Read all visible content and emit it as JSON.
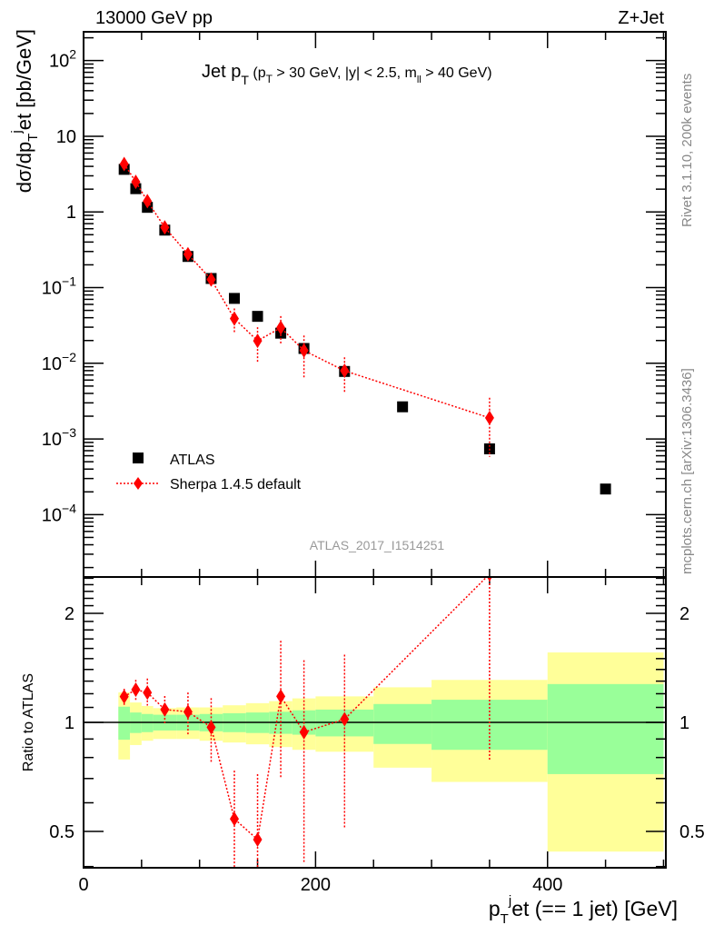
{
  "header": {
    "left": "13000 GeV pp",
    "right": "Z+Jet"
  },
  "side_text": {
    "rivet": "Rivet 3.1.10,  200k events",
    "mcplots": "mcplots.cern.ch [arXiv:1306.3436]"
  },
  "watermark": "ATLAS_2017_I1514251",
  "chart_data": [
    {
      "type": "scatter",
      "title": {
        "main": "Jet p",
        "sub1": "T",
        "cut": " (p",
        "sub2": "T",
        "cut2": " > 30 GeV, |y| < 2.5, m",
        "sub3": "ll",
        "cut3": " > 40 GeV)"
      },
      "ylabel": {
        "a": "dσ/dp",
        "sub": "T",
        "sup": "j",
        "b": "et [pb/GeV]"
      },
      "yscale": "log",
      "ylim": [
        1.5e-05,
        240
      ],
      "xlim": [
        0,
        502
      ],
      "yticks": [
        0.0001,
        0.001,
        0.01,
        0.1,
        1,
        10,
        100
      ],
      "ytick_labels": [
        {
          "base": "10",
          "exp": "−4"
        },
        {
          "base": "10",
          "exp": "−3"
        },
        {
          "base": "10",
          "exp": "−2"
        },
        {
          "base": "10",
          "exp": "−1"
        },
        {
          "base": "1",
          "exp": ""
        },
        {
          "base": "10",
          "exp": ""
        },
        {
          "base": "10",
          "exp": "2"
        }
      ],
      "legend": {
        "position": "bottom-left",
        "entries": [
          "ATLAS",
          "Sherpa 1.4.5 default"
        ]
      },
      "series": [
        {
          "name": "ATLAS",
          "color": "#000000",
          "marker": "square",
          "x": [
            35,
            45,
            55,
            70,
            90,
            110,
            130,
            150,
            170,
            190,
            225,
            275,
            350,
            450
          ],
          "y": [
            3.65,
            2.03,
            1.15,
            0.575,
            0.258,
            0.132,
            0.072,
            0.0417,
            0.025,
            0.0157,
            0.0078,
            0.00266,
            0.00074,
            0.000218
          ]
        },
        {
          "name": "Sherpa 1.4.5 default",
          "color": "#ff0000",
          "marker": "diamond",
          "line": "dotted",
          "x": [
            35,
            45,
            55,
            70,
            90,
            110,
            130,
            150,
            170,
            190,
            225,
            350
          ],
          "y": [
            4.3,
            2.5,
            1.39,
            0.624,
            0.276,
            0.128,
            0.039,
            0.0198,
            0.0295,
            0.01476,
            0.00796,
            0.0019
          ],
          "ylo": [
            4.08,
            2.34,
            1.28,
            0.57,
            0.237,
            0.102,
            0.025,
            0.0099,
            0.0175,
            0.0064,
            0.004,
            0.00058
          ],
          "yhi": [
            4.52,
            2.66,
            1.52,
            0.68,
            0.312,
            0.154,
            0.053,
            0.03,
            0.042,
            0.0233,
            0.012,
            0.0035
          ]
        }
      ]
    },
    {
      "type": "scatter",
      "ylabel": "Ratio to ATLAS",
      "xlabel": {
        "a": "p",
        "sub": "T",
        "sup": "j",
        "b": "et (== 1 jet) [GeV]"
      },
      "yscale": "log",
      "ylim": [
        0.397,
        2.52
      ],
      "xlim": [
        0,
        502
      ],
      "xticks": [
        0,
        200,
        400
      ],
      "xtick_labels": [
        "0",
        "200",
        "400"
      ],
      "yticks": [
        0.5,
        1,
        2
      ],
      "ytick_labels": [
        "0.5",
        "1",
        "2"
      ],
      "bands": {
        "edges": [
          30,
          40,
          50,
          60,
          80,
          100,
          120,
          140,
          160,
          180,
          200,
          250,
          300,
          400,
          500
        ],
        "green_lo": [
          0.896,
          0.935,
          0.94,
          0.95,
          0.95,
          0.945,
          0.94,
          0.935,
          0.93,
          0.925,
          0.915,
          0.872,
          0.84,
          0.72
        ],
        "green_hi": [
          1.105,
          1.065,
          1.055,
          1.05,
          1.05,
          1.055,
          1.06,
          1.065,
          1.07,
          1.08,
          1.085,
          1.124,
          1.155,
          1.276
        ],
        "yellow_lo": [
          0.79,
          0.866,
          0.89,
          0.9,
          0.9,
          0.89,
          0.88,
          0.87,
          0.855,
          0.84,
          0.83,
          0.75,
          0.685,
          0.44
        ],
        "yellow_hi": [
          1.21,
          1.135,
          1.11,
          1.095,
          1.1,
          1.1,
          1.115,
          1.13,
          1.145,
          1.165,
          1.18,
          1.25,
          1.31,
          1.56
        ],
        "green_color": "#99ff99",
        "yellow_color": "#ffff99"
      }
    }
  ]
}
